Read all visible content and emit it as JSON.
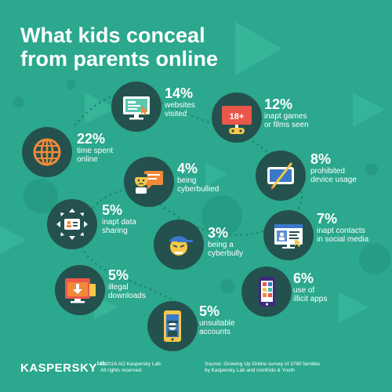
{
  "title": {
    "line1": "What kids conceal",
    "line2": "from parents online"
  },
  "stats": [
    {
      "id": "websites",
      "percent": "14%",
      "label": "websites\nvisited",
      "icon": "monitor-cursor-icon"
    },
    {
      "id": "games",
      "percent": "12%",
      "label": "inapt games\nor films seen",
      "icon": "age-18-gamepad-icon"
    },
    {
      "id": "time",
      "percent": "22%",
      "label": "time spent\nonline",
      "icon": "globe-icon"
    },
    {
      "id": "cyberbullied",
      "percent": "4%",
      "label": "being\ncyberbullied",
      "icon": "bullied-chat-icon"
    },
    {
      "id": "device",
      "percent": "8%",
      "label": "prohibited\ndevice usage",
      "icon": "tablet-stylus-icon"
    },
    {
      "id": "sharing",
      "percent": "5%",
      "label": "inapt data\nsharing",
      "icon": "data-share-card-icon"
    },
    {
      "id": "cyberbully",
      "percent": "3%",
      "label": "being a\ncyberbully",
      "icon": "bully-face-icon"
    },
    {
      "id": "contacts",
      "percent": "7%",
      "label": "inapt contacts\nin social media",
      "icon": "social-profile-icon"
    },
    {
      "id": "downloads",
      "percent": "5%",
      "label": "illegal\ndownloads",
      "icon": "download-window-icon"
    },
    {
      "id": "apps",
      "percent": "6%",
      "label": "use of\nillicit apps",
      "icon": "phone-apps-icon"
    },
    {
      "id": "accounts",
      "percent": "5%",
      "label": "unsuitable\naccounts",
      "icon": "phone-spy-icon"
    }
  ],
  "footer": {
    "brand": "KASPERSKY",
    "brand_suffix": "lab",
    "copyright": "© 2016 AO Kaspersky Lab.\nAll rights reserved.",
    "source": "Source: Growing Up Online survey of 3780 families\nby Kaspersky Lab and iconKids & Youth"
  },
  "colors": {
    "background": "#2ba88e",
    "icon_circle": "#24514d",
    "accent_orange": "#f0893a",
    "accent_yellow": "#f5c74a",
    "accent_red": "#e9574a",
    "decor_light": "#3fbfa3",
    "decor_dark": "#1f8f78"
  }
}
